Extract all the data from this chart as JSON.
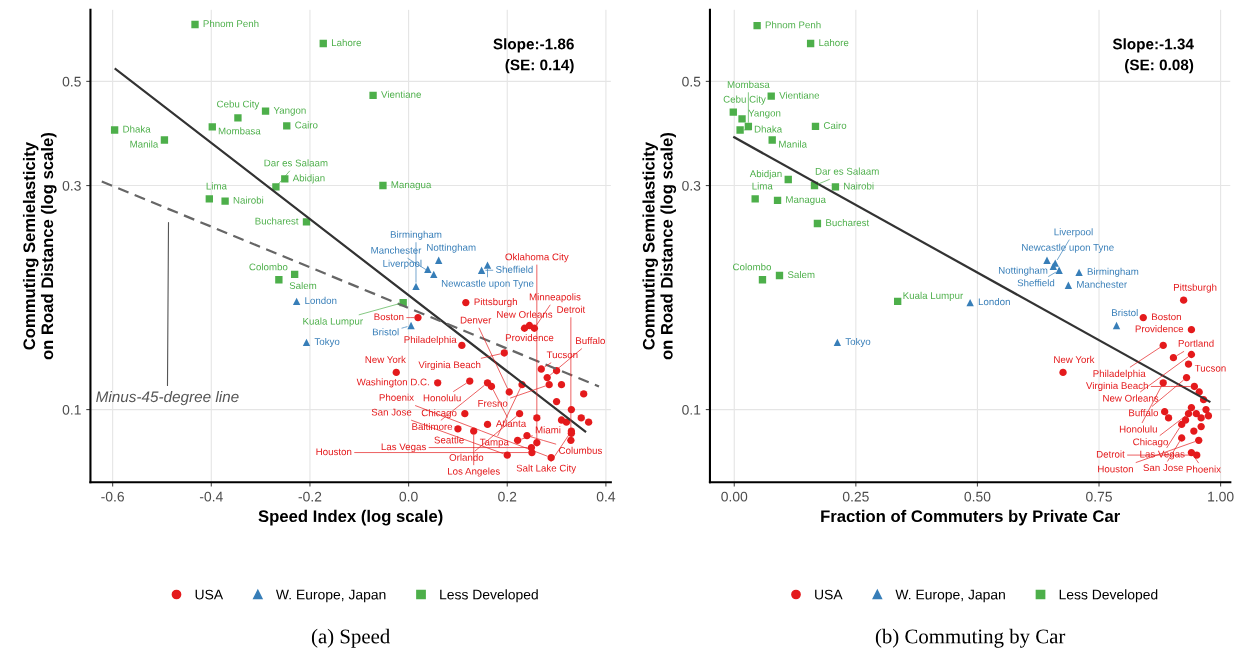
{
  "chart_data": [
    {
      "type": "scatter",
      "title": "(a) Speed",
      "xlabel": "Speed Index (log scale)",
      "ylabel": "Commuting Semielasticity\non Road Distance (log scale)",
      "log": "y",
      "grid": true,
      "legend": "bottom",
      "xlim": [
        -0.645,
        0.41
      ],
      "ylim": [
        0.07,
        0.71
      ],
      "xticks": [
        -0.6,
        -0.4,
        -0.2,
        {
          "value": 0,
          "label": "0.0"
        },
        0.2,
        0.4
      ],
      "yticks": [
        0.1,
        0.3,
        0.5
      ],
      "annotations": [
        "Slope:-1.86\n(SE: 0.14)",
        "Minus-45-degree line"
      ],
      "series": [
        {
          "name": "USA",
          "color": "#e41a1c",
          "marker": "circle",
          "x": [
            0.116,
            0.019,
            0.108,
            0.235,
            0.245,
            0.255,
            0.194,
            0.269,
            0.281,
            0.285,
            -0.025,
            0.059,
            0.124,
            0.16,
            0.23,
            0.168,
            0.204,
            0.225,
            0.114,
            0.1,
            0.132,
            0.33,
            0.221,
            0.249,
            0.24,
            0.26,
            0.329,
            0.2,
            0.25,
            0.289,
            0.3,
            0.31,
            0.33,
            0.32,
            0.35,
            0.365,
            0.355,
            0.26,
            0.16,
            0.31,
            0.33,
            0.3
          ],
          "values": [
            0.169,
            0.157,
            0.137,
            0.149,
            0.151,
            0.149,
            0.132,
            0.122,
            0.117,
            0.113,
            0.12,
            0.114,
            0.115,
            0.114,
            0.113,
            0.112,
            0.109,
            0.098,
            0.098,
            0.091,
            0.09,
            0.09,
            0.086,
            0.083,
            0.088,
            0.085,
            0.086,
            0.08,
            0.081,
            0.079,
            0.121,
            0.113,
            0.1,
            0.094,
            0.096,
            0.094,
            0.108,
            0.096,
            0.093,
            0.095,
            0.089,
            0.104
          ],
          "value_labels": [
            "Pittsburgh",
            "Boston",
            "Philadelphia",
            "New Orleans",
            "Providence",
            "Minneapolis",
            "Virginia Beach",
            "Tucson",
            "Buffalo",
            "Fresno",
            "New York",
            "Washington D.C.",
            "Honolulu",
            "Baltimore",
            "Tampa",
            "Atlanta",
            "Denver",
            "Orlando",
            "Chicago",
            "Seattle",
            "Los Angeles",
            "Salt Lake City",
            "Miami",
            "Las Vegas",
            "Columbus",
            "Oklahoma City",
            "Detroit",
            "San Jose",
            "Houston",
            "Phoenix",
            null,
            null,
            null,
            null,
            null,
            null,
            null,
            null,
            null,
            null,
            null,
            null
          ]
        },
        {
          "name": "W. Europe, Japan",
          "color": "#377eb8",
          "marker": "triangle",
          "x": [
            0.061,
            0.039,
            0.16,
            0.148,
            0.051,
            0.015,
            -0.227,
            0.005,
            -0.207
          ],
          "values": [
            0.208,
            0.199,
            0.203,
            0.198,
            0.194,
            0.183,
            0.17,
            0.151,
            0.139
          ],
          "value_labels": [
            "Nottingham",
            "Liverpool",
            "Newcastle upon Tyne",
            "Sheffield",
            "Manchester",
            "Birmingham",
            "London",
            "Bristol",
            "Tokyo"
          ]
        },
        {
          "name": "Less Developed",
          "color": "#4daf4a",
          "marker": "square",
          "x": [
            -0.433,
            -0.173,
            -0.072,
            -0.29,
            -0.346,
            -0.596,
            -0.398,
            -0.247,
            -0.495,
            -0.251,
            -0.269,
            -0.404,
            -0.372,
            -0.052,
            -0.207,
            -0.263,
            -0.231,
            -0.011
          ],
          "values": [
            0.661,
            0.602,
            0.467,
            0.432,
            0.418,
            0.394,
            0.4,
            0.402,
            0.375,
            0.31,
            0.298,
            0.281,
            0.278,
            0.3,
            0.251,
            0.189,
            0.194,
            0.169
          ],
          "value_labels": [
            "Phnom Penh",
            "Lahore",
            "Vientiane",
            "Yangon",
            "Cebu City",
            "Dhaka",
            "Mombasa",
            "Cairo",
            "Manila",
            "Abidjan",
            "Dar es Salaam",
            "Lima",
            "Nairobi",
            "Managua",
            "Bucharest",
            "Colombo",
            "Salem",
            "Kuala Lumpur"
          ]
        },
        {
          "type": "line",
          "color": "#333333",
          "line_style": "solid",
          "x": [
            -0.594,
            0.358
          ],
          "values": [
            0.531,
            0.0898
          ]
        },
        {
          "type": "line",
          "color": "#666666",
          "line_style": "dashed",
          "x": [
            -0.622,
            0.386
          ],
          "values": [
            0.306,
            0.112
          ]
        }
      ]
    },
    {
      "type": "scatter",
      "title": "(b) Commuting by Car",
      "xlabel": "Fraction of Commuters by Private Car",
      "ylabel": "Commuting Semielasticity\non Road Distance (log scale)",
      "log": "y",
      "grid": true,
      "legend": "bottom",
      "xlim": [
        -0.05,
        1.02
      ],
      "ylim": [
        0.07,
        0.71
      ],
      "xticks": [
        {
          "value": 0,
          "label": "0.00"
        },
        {
          "value": 0.25,
          "label": "0.25"
        },
        {
          "value": 0.5,
          "label": "0.50"
        },
        {
          "value": 0.75,
          "label": "0.75"
        },
        {
          "value": 1,
          "label": "1.00"
        }
      ],
      "yticks": [
        0.1,
        0.3,
        0.5
      ],
      "annotations": [
        "Slope:-1.34\n(SE: 0.08)"
      ],
      "series": [
        {
          "name": "USA",
          "color": "#e41a1c",
          "marker": "circle",
          "x": [
            0.924,
            0.841,
            0.94,
            0.882,
            0.94,
            0.903,
            0.934,
            0.676,
            0.93,
            0.946,
            0.882,
            0.934,
            0.92,
            0.92,
            0.955,
            0.94,
            0.951,
            0.885,
            0.893,
            0.956,
            0.94,
            0.95,
            0.96,
            0.928,
            0.945,
            0.97,
            0.965,
            0.96,
            0.975
          ],
          "values": [
            0.171,
            0.157,
            0.148,
            0.137,
            0.131,
            0.129,
            0.125,
            0.12,
            0.117,
            0.112,
            0.114,
            0.098,
            0.093,
            0.087,
            0.086,
            0.081,
            0.08,
            0.099,
            0.096,
            0.109,
            0.101,
            0.098,
            0.096,
            0.095,
            0.09,
            0.1,
            0.105,
            0.092,
            0.097
          ],
          "value_labels": [
            "Pittsburgh",
            "Boston",
            "Providence",
            "Philadelphia",
            "New Orleans",
            "Portland",
            "Tucson",
            "New York",
            "Buffalo",
            "Virginia Beach",
            "Honolulu",
            "Chicago",
            "Las Vegas",
            "San Jose",
            "Houston",
            "Phoenix",
            "Detroit",
            null,
            null,
            null,
            null,
            null,
            null,
            null,
            null,
            null,
            null,
            null,
            null
          ]
        },
        {
          "name": "W. Europe, Japan",
          "color": "#377eb8",
          "marker": "triangle",
          "x": [
            0.643,
            0.656,
            0.668,
            0.66,
            0.709,
            0.687,
            0.485,
            0.786,
            0.212
          ],
          "values": [
            0.208,
            0.202,
            0.198,
            0.205,
            0.196,
            0.184,
            0.169,
            0.151,
            0.139
          ],
          "value_labels": [
            "Newcastle upon Tyne",
            "Nottingham",
            "Sheffield",
            "Liverpool",
            "Birmingham",
            "Manchester",
            "London",
            "Bristol",
            "Tokyo"
          ]
        },
        {
          "name": "Less Developed",
          "color": "#4daf4a",
          "marker": "square",
          "x": [
            0.047,
            0.157,
            0.076,
            0.016,
            -0.002,
            0.012,
            0.029,
            0.167,
            0.078,
            0.111,
            0.165,
            0.043,
            0.208,
            0.089,
            0.171,
            0.058,
            0.093,
            0.336
          ],
          "values": [
            0.657,
            0.602,
            0.465,
            0.416,
            0.43,
            0.394,
            0.401,
            0.401,
            0.375,
            0.309,
            0.3,
            0.281,
            0.298,
            0.279,
            0.249,
            0.189,
            0.193,
            0.17
          ],
          "value_labels": [
            "Phnom Penh",
            "Lahore",
            "Vientiane",
            "Yangon",
            "Cebu City",
            "Dhaka",
            "Mombasa",
            "Cairo",
            "Manila",
            "Abidjan",
            "Dar es Salaam",
            "Lima",
            "Nairobi",
            "Managua",
            "Bucharest",
            "Colombo",
            "Salem",
            "Kuala Lumpur"
          ]
        },
        {
          "type": "line",
          "color": "#333333",
          "line_style": "solid",
          "x": [
            0.0,
            0.977
          ],
          "values": [
            0.38,
            0.104
          ]
        }
      ]
    }
  ]
}
